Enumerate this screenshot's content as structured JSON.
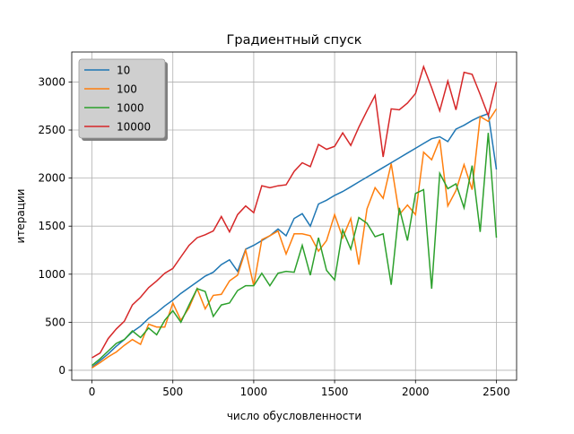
{
  "chart_data": {
    "type": "line",
    "title": "Градиентный спуск",
    "xlabel": "число обусловленности",
    "ylabel": "итерации",
    "x": [
      0,
      50,
      100,
      150,
      200,
      250,
      300,
      350,
      400,
      450,
      500,
      550,
      600,
      650,
      700,
      750,
      800,
      850,
      900,
      950,
      1000,
      1050,
      1100,
      1150,
      1200,
      1250,
      1300,
      1350,
      1400,
      1450,
      1500,
      1550,
      1600,
      1650,
      1700,
      1750,
      1800,
      1850,
      1900,
      1950,
      2000,
      2050,
      2100,
      2150,
      2200,
      2250,
      2300,
      2350,
      2400,
      2450,
      2500
    ],
    "series": [
      {
        "name": "10",
        "color": "#1f77b4",
        "values": [
          30,
          100,
          170,
          250,
          320,
          400,
          460,
          540,
          600,
          670,
          730,
          800,
          860,
          920,
          980,
          1020,
          1100,
          1150,
          1030,
          1260,
          1300,
          1350,
          1400,
          1470,
          1400,
          1580,
          1630,
          1500,
          1730,
          1770,
          1820,
          1860,
          1910,
          1960,
          2010,
          2060,
          2110,
          2160,
          2210,
          2260,
          2310,
          2360,
          2410,
          2430,
          2380,
          2510,
          2550,
          2600,
          2640,
          2670,
          2090
        ]
      },
      {
        "name": "100",
        "color": "#ff7f0e",
        "values": [
          25,
          80,
          140,
          190,
          260,
          320,
          270,
          480,
          450,
          450,
          700,
          520,
          650,
          850,
          640,
          780,
          790,
          930,
          990,
          1250,
          880,
          1360,
          1400,
          1450,
          1210,
          1420,
          1420,
          1400,
          1240,
          1350,
          1620,
          1380,
          1580,
          1100,
          1680,
          1900,
          1790,
          2150,
          1620,
          1720,
          1620,
          2270,
          2190,
          2400,
          1710,
          1870,
          2140,
          1880,
          2640,
          2590,
          2720
        ]
      },
      {
        "name": "1000",
        "color": "#2ca02c",
        "values": [
          50,
          120,
          200,
          280,
          320,
          410,
          340,
          440,
          370,
          520,
          620,
          500,
          680,
          850,
          820,
          560,
          680,
          700,
          830,
          880,
          880,
          1010,
          880,
          1010,
          1030,
          1020,
          1300,
          990,
          1380,
          1040,
          940,
          1460,
          1260,
          1590,
          1530,
          1390,
          1420,
          890,
          1690,
          1350,
          1840,
          1880,
          850,
          2050,
          1890,
          1940,
          1690,
          2130,
          1440,
          2470,
          1380
        ]
      },
      {
        "name": "10000",
        "color": "#d62728",
        "values": [
          130,
          180,
          330,
          430,
          510,
          680,
          760,
          860,
          930,
          1010,
          1060,
          1180,
          1300,
          1380,
          1410,
          1450,
          1600,
          1440,
          1620,
          1710,
          1640,
          1920,
          1900,
          1920,
          1930,
          2070,
          2160,
          2120,
          2350,
          2300,
          2330,
          2470,
          2340,
          2530,
          2700,
          2860,
          2220,
          2720,
          2710,
          2780,
          2880,
          3160,
          2940,
          2700,
          3010,
          2710,
          3100,
          3080,
          2870,
          2650,
          3000
        ]
      }
    ],
    "xlim": [
      -125,
      2625
    ],
    "ylim": [
      -103,
      3312
    ],
    "xticks": [
      0,
      500,
      1000,
      1500,
      2000,
      2500
    ],
    "yticks": [
      0,
      500,
      1000,
      1500,
      2000,
      2500,
      3000
    ],
    "grid": true,
    "legend": "upper left"
  }
}
